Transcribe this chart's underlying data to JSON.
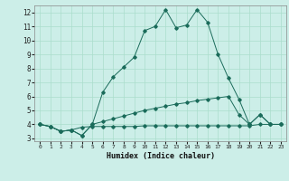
{
  "xlabel": "Humidex (Indice chaleur)",
  "bg_color": "#cceee8",
  "line_color": "#1a6b5a",
  "grid_color": "#aaddcc",
  "xlim": [
    -0.5,
    23.5
  ],
  "ylim": [
    2.8,
    12.5
  ],
  "xticks": [
    0,
    1,
    2,
    3,
    4,
    5,
    6,
    7,
    8,
    9,
    10,
    11,
    12,
    13,
    14,
    15,
    16,
    17,
    18,
    19,
    20,
    21,
    22,
    23
  ],
  "yticks": [
    3,
    4,
    5,
    6,
    7,
    8,
    9,
    10,
    11,
    12
  ],
  "line1_x": [
    0,
    1,
    2,
    3,
    4,
    5,
    6,
    7,
    8,
    9,
    10,
    11,
    12,
    13,
    14,
    15,
    16,
    17,
    18,
    19,
    20,
    21,
    22,
    23
  ],
  "line1_y": [
    4.0,
    3.85,
    3.5,
    3.6,
    3.8,
    3.85,
    3.85,
    3.85,
    3.85,
    3.85,
    3.9,
    3.9,
    3.9,
    3.9,
    3.9,
    3.9,
    3.9,
    3.9,
    3.9,
    3.9,
    3.9,
    4.0,
    4.0,
    4.0
  ],
  "line2_x": [
    0,
    1,
    2,
    3,
    4,
    5,
    6,
    7,
    8,
    9,
    10,
    11,
    12,
    13,
    14,
    15,
    16,
    17,
    18,
    19,
    20,
    21,
    22,
    23
  ],
  "line2_y": [
    4.0,
    3.85,
    3.5,
    3.6,
    3.2,
    4.0,
    6.3,
    7.4,
    8.1,
    8.8,
    10.7,
    11.0,
    12.2,
    10.9,
    11.1,
    12.2,
    11.3,
    9.0,
    7.3,
    5.8,
    4.0,
    4.7,
    4.0,
    4.0
  ],
  "line3_x": [
    0,
    1,
    2,
    3,
    4,
    5,
    6,
    7,
    8,
    9,
    10,
    11,
    12,
    13,
    14,
    15,
    16,
    17,
    18,
    19,
    20,
    21,
    22,
    23
  ],
  "line3_y": [
    4.0,
    3.85,
    3.5,
    3.6,
    3.2,
    4.0,
    4.2,
    4.4,
    4.6,
    4.8,
    5.0,
    5.15,
    5.3,
    5.45,
    5.55,
    5.7,
    5.8,
    5.9,
    6.0,
    4.7,
    4.0,
    4.7,
    4.0,
    4.0
  ]
}
